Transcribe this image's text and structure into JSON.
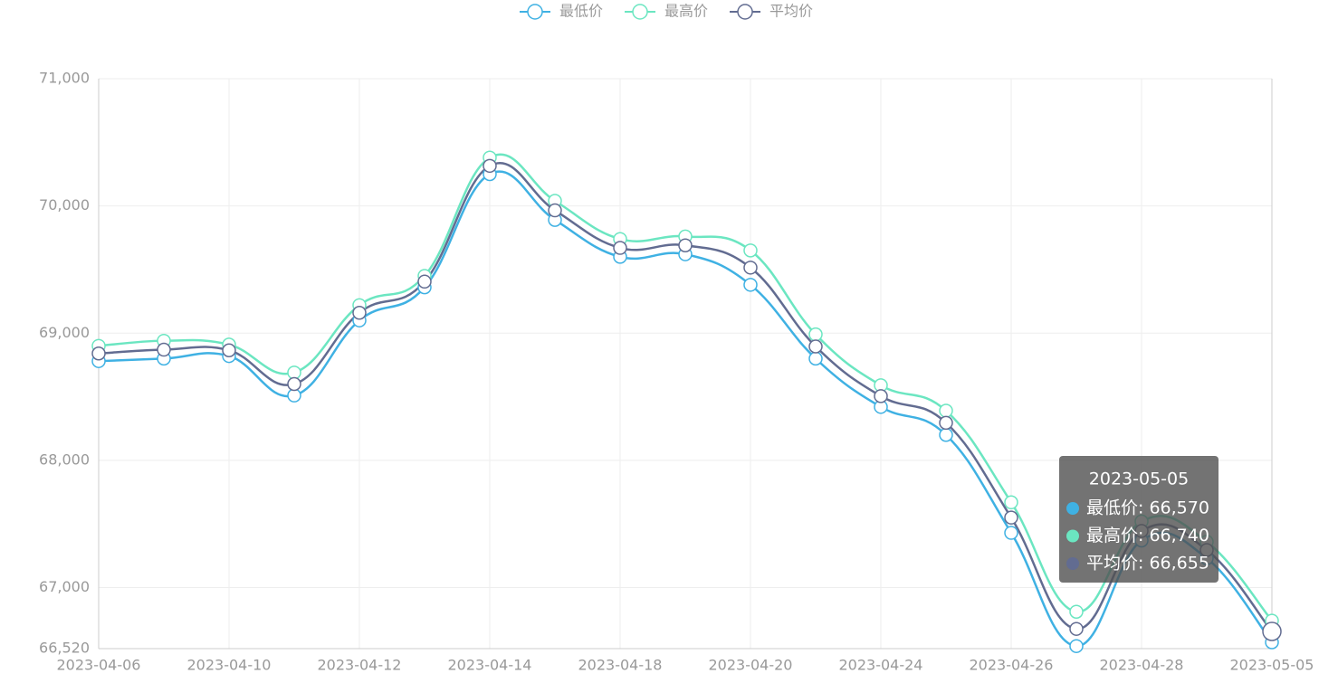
{
  "chart_data": {
    "type": "line",
    "categories": [
      "2023-04-06",
      null,
      "2023-04-10",
      null,
      "2023-04-12",
      null,
      "2023-04-14",
      null,
      "2023-04-18",
      null,
      "2023-04-20",
      null,
      "2023-04-24",
      null,
      "2023-04-26",
      null,
      "2023-04-28",
      null,
      "2023-05-05"
    ],
    "series": [
      {
        "name": "最低价",
        "color": "#3fb1e3",
        "values": [
          68780,
          68800,
          68820,
          68510,
          69100,
          69360,
          70250,
          69890,
          69600,
          69620,
          69380,
          68800,
          68420,
          68200,
          67430,
          66540,
          67370,
          67230,
          66570
        ]
      },
      {
        "name": "最高价",
        "color": "#6be6c1",
        "values": [
          68900,
          68940,
          68910,
          68690,
          69220,
          69450,
          70380,
          70040,
          69740,
          69760,
          69650,
          68990,
          68590,
          68390,
          67670,
          66810,
          67520,
          67360,
          66740
        ]
      },
      {
        "name": "平均价",
        "color": "#626c91",
        "values": [
          68840,
          68870,
          68865,
          68600,
          69160,
          69405,
          70315,
          69965,
          69670,
          69690,
          69515,
          68895,
          68505,
          68295,
          67550,
          66675,
          67445,
          67295,
          66655
        ]
      }
    ],
    "ylim": [
      66520,
      71000
    ],
    "yticks": [
      {
        "value": 66520,
        "label": "66,520"
      },
      {
        "value": 67000,
        "label": "67,000"
      },
      {
        "value": 68000,
        "label": "68,000"
      },
      {
        "value": 69000,
        "label": "69,000"
      },
      {
        "value": 70000,
        "label": "70,000"
      },
      {
        "value": 71000,
        "label": "71,000"
      }
    ],
    "grid": true,
    "legend": "top",
    "tooltip": {
      "title": "2023-05-05",
      "rows": [
        {
          "text": "最低价: 66,570",
          "value": 66570
        },
        {
          "text": "最高价: 66,740",
          "value": 66740
        },
        {
          "text": "平均价: 66,655",
          "value": 66655
        }
      ]
    }
  }
}
